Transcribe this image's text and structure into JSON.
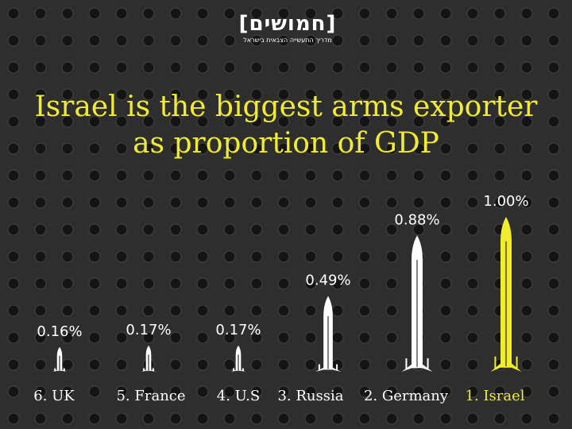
{
  "logo": {
    "main": "[חמושים]",
    "sub": "מדריך התעשייה הצבאית בישראל"
  },
  "chart_data": {
    "type": "bar",
    "title_lines": [
      "Israel is the biggest arms exporter",
      "as proportion of GDP"
    ],
    "categories": [
      "6. UK",
      "5. France",
      "4. U.S",
      "3. Russia",
      "2. Germany",
      "1. Israel"
    ],
    "values": [
      0.16,
      0.17,
      0.17,
      0.49,
      0.88,
      1.0
    ],
    "value_labels": [
      "0.16%",
      "0.17%",
      "0.17%",
      "0.49%",
      "0.88%",
      "1.00%"
    ],
    "ylim": [
      0,
      1.0
    ],
    "grid": false,
    "colors": {
      "default": "#ffffff",
      "highlight": "#f2ec2e"
    },
    "highlight_index": 5
  }
}
